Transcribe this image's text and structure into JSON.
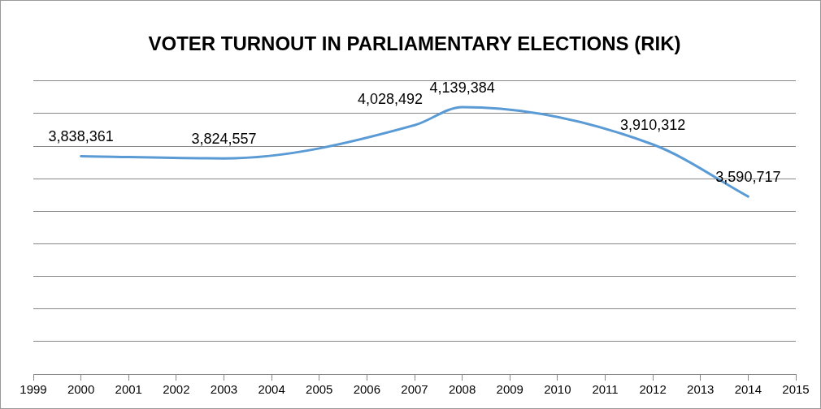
{
  "chart_data": {
    "type": "line",
    "title": "VOTER TURNOUT IN PARLIAMENTARY ELECTIONS (RIK)",
    "x": [
      2000,
      2003,
      2007,
      2008,
      2012,
      2014
    ],
    "series": [
      {
        "color": "#5b9bd5",
        "values": [
          3838361,
          3824557,
          4028492,
          4139384,
          3910312,
          3590717
        ],
        "value_labels": [
          "3,838,361",
          "3,824,557",
          "4,028,492",
          "4,139,384",
          "3,910,312",
          "3,590,717"
        ]
      }
    ],
    "xlim": [
      1999,
      2015
    ],
    "xticks": [
      1999,
      2000,
      2001,
      2002,
      2003,
      2004,
      2005,
      2006,
      2007,
      2008,
      2009,
      2010,
      2011,
      2012,
      2013,
      2014,
      2015
    ],
    "ylim": [
      2500000,
      4300000
    ],
    "yticks": [
      {
        "value": 2500000,
        "label": null
      },
      {
        "value": 2700000,
        "label": null
      },
      {
        "value": 2900000,
        "label": null
      },
      {
        "value": 3100000,
        "label": null
      },
      {
        "value": 3300000,
        "label": null
      },
      {
        "value": 3500000,
        "label": null
      },
      {
        "value": 3700000,
        "label": null
      },
      {
        "value": 3900000,
        "label": null
      },
      {
        "value": 4100000,
        "label": null
      },
      {
        "value": 4300000,
        "label": null
      }
    ],
    "tick_labels": "x",
    "grid": "y",
    "legend": false,
    "marker": "none",
    "line_style": "solid"
  }
}
